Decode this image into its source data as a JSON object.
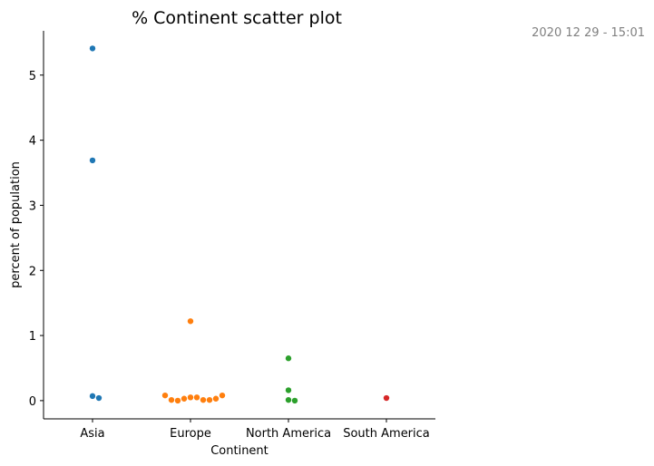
{
  "timestamp": "2020 12 29 - 15:01",
  "chart_data": {
    "type": "scatter",
    "title": "% Continent scatter plot",
    "xlabel": "Continent",
    "ylabel": "percent of population",
    "categories": [
      "Asia",
      "Europe",
      "North America",
      "South America"
    ],
    "ylim": [
      -0.28,
      5.68
    ],
    "yticks": [
      0,
      1,
      2,
      3,
      4,
      5
    ],
    "grid": false,
    "series": [
      {
        "category": "Asia",
        "color": "#1f77b4",
        "values": [
          5.41,
          3.69,
          0.07,
          0.04
        ]
      },
      {
        "category": "Europe",
        "color": "#ff7f0e",
        "values": [
          1.22,
          0.05,
          0.05,
          0.03,
          0.01,
          0.0,
          0.01,
          0.01,
          0.03,
          0.08,
          0.08
        ]
      },
      {
        "category": "North America",
        "color": "#2ca02c",
        "values": [
          0.65,
          0.16,
          0.01,
          0.0
        ]
      },
      {
        "category": "South America",
        "color": "#d62728",
        "values": [
          0.04
        ]
      }
    ]
  }
}
